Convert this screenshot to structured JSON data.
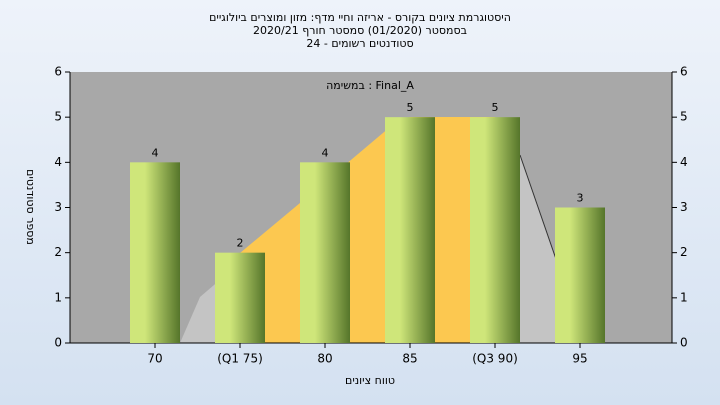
{
  "chart_data": {
    "type": "bar",
    "title": [
      "היסטוגרמת ציונים בקורס - אריזה וחיי מדף: מזון ומוצרים ביולוגיים",
      "בסמסטר (01/2020) סמסטר חורף 2020/21",
      "סטודנטים רשומים - 24"
    ],
    "annotation": "במשימה : Final_A",
    "x_label": "טווח ציונים",
    "y_label": "מספר סטודנטים",
    "categories": [
      "70",
      "(Q1 75)",
      "80",
      "85",
      "(Q3 90)",
      "95"
    ],
    "values": [
      4,
      2,
      4,
      5,
      5,
      3
    ],
    "color": [
      "#cfe67a",
      "#55752a"
    ],
    "ylim": [
      0,
      6
    ],
    "yticks": [
      0,
      1,
      2,
      3,
      4,
      5,
      6
    ],
    "y2lim": [
      0,
      6
    ],
    "y2ticks": [
      0,
      1,
      2,
      3,
      4,
      5,
      6
    ]
  }
}
